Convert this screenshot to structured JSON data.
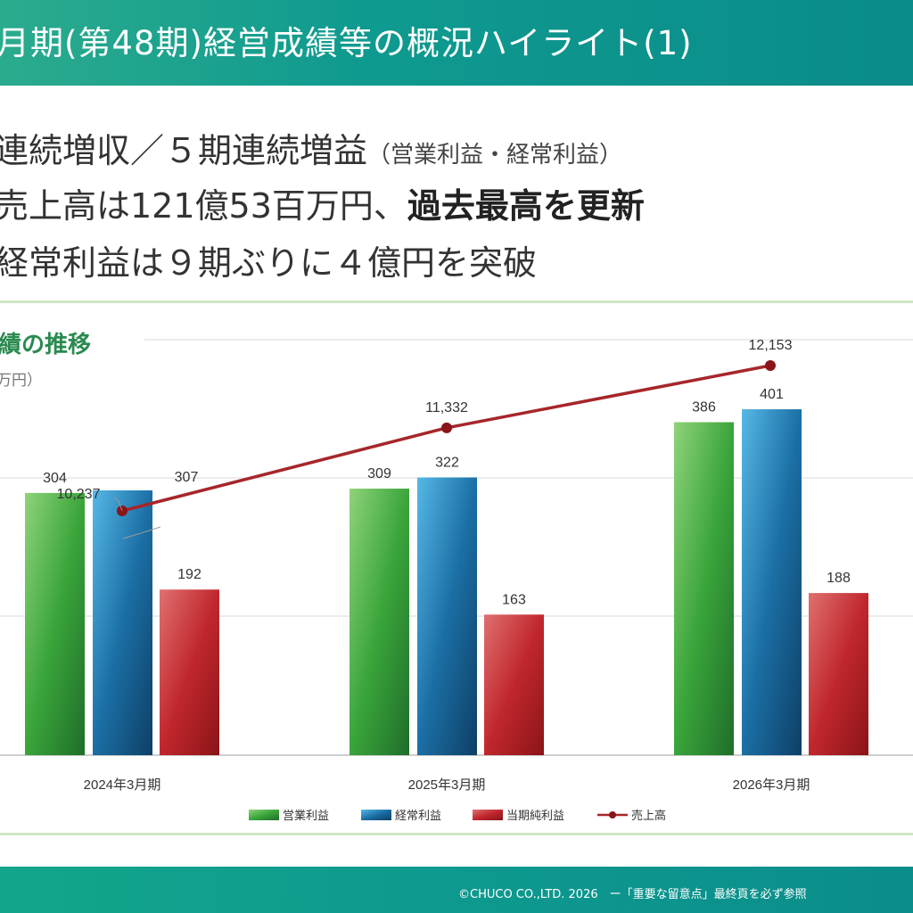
{
  "header": {
    "title": "月期(第48期)経営成績等の概況ハイライト(1)"
  },
  "bullets": {
    "b1_main": "連続増収／５期連続増益",
    "b1_note": "（営業利益・経常利益）",
    "b2_main": "売上高は121億53百万円、",
    "b2_bold": "過去最高を更新",
    "b3": "経常利益は９期ぶりに４億円を突破"
  },
  "section": {
    "title": "績の推移",
    "unit": "万円）"
  },
  "colors": {
    "operating": "#3aa53a",
    "ordinary": "#1b6fa5",
    "net": "#c0272d",
    "sales": "#a6262a",
    "header": "#0f9a8f"
  },
  "chart_data": {
    "type": "bar",
    "categories": [
      "2024年3月期",
      "2025年3月期",
      "2026年3月期"
    ],
    "series": [
      {
        "name": "営業利益",
        "type": "bar",
        "values": [
          304,
          309,
          386
        ]
      },
      {
        "name": "経常利益",
        "type": "bar",
        "values": [
          307,
          322,
          401
        ]
      },
      {
        "name": "当期純利益",
        "type": "bar",
        "values": [
          192,
          163,
          188
        ]
      },
      {
        "name": "売上高",
        "type": "line",
        "values": [
          10237,
          11332,
          12153
        ],
        "labels": [
          "10,237",
          "11,332",
          "12,153"
        ]
      }
    ],
    "legend_position": "bottom",
    "grid": true
  },
  "footer": {
    "text": "©CHUCO CO.,LTD. 2026　ー「重要な留意点」最終頁を必ず参照"
  }
}
